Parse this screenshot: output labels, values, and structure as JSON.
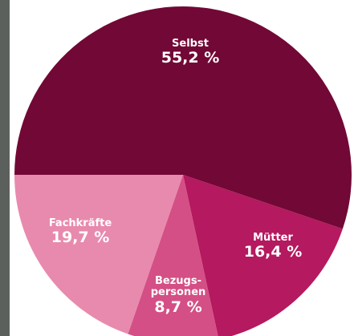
{
  "chart_data": {
    "type": "pie",
    "categories": [
      "Selbst",
      "Mütter",
      "Bezugs-\npersonen",
      "Fachkräfte"
    ],
    "values": [
      55.2,
      16.4,
      8.7,
      19.7
    ],
    "value_labels": [
      "55,2 %",
      "16,4 %",
      "8,7 %",
      "19,7 %"
    ],
    "colors": [
      "#720835",
      "#b5195f",
      "#d44f85",
      "#e88aad"
    ]
  }
}
